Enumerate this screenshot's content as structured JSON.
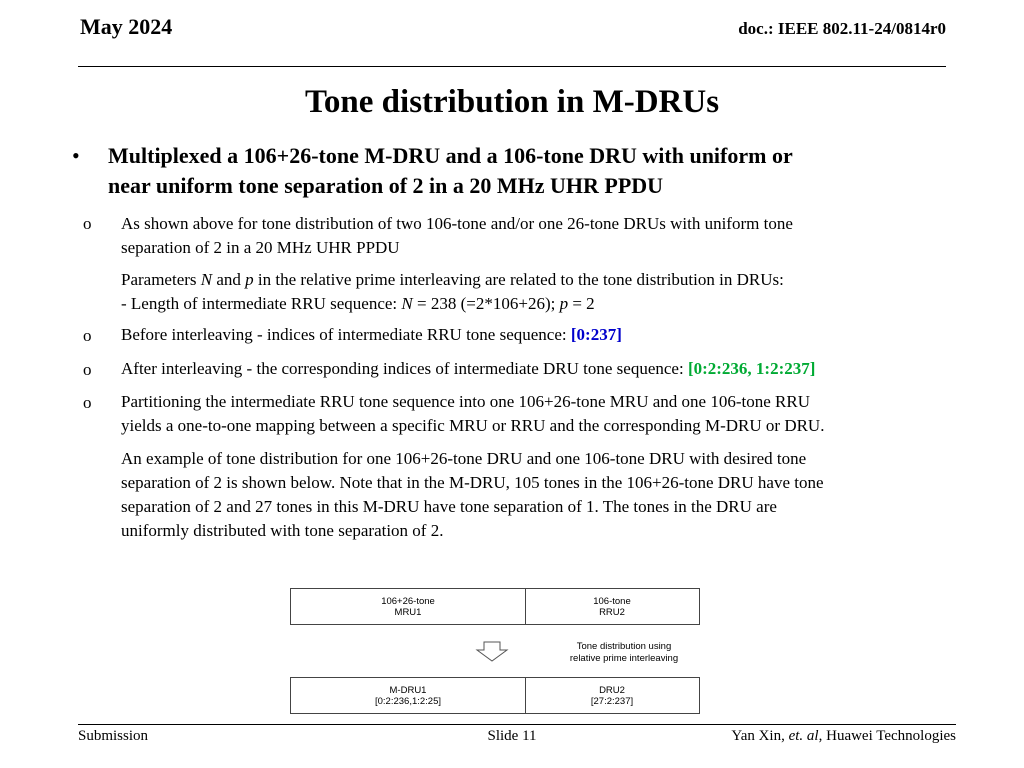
{
  "header": {
    "date": "May 2024",
    "doc": "doc.: IEEE 802.11-24/0814r0"
  },
  "title": "Tone distribution in M-DRUs",
  "main_bullet": {
    "marker": "•",
    "line1": "Multiplexed a 106+26-tone M-DRU and a 106-tone DRU with uniform or",
    "line2": "near uniform tone separation of 2 in a 20 MHz UHR PPDU"
  },
  "sub_bullets": {
    "marker": "o",
    "item1": {
      "line1": "As shown above for tone distribution of two 106-tone and/or one 26-tone DRUs with uniform tone",
      "line2": "separation of 2 in a 20 MHz UHR PPDU"
    },
    "params": {
      "l1_a": "Parameters ",
      "l1_N": "N",
      "l1_b": " and ",
      "l1_p": "p",
      "l1_c": " in the relative prime interleaving are related to the tone distribution in DRUs:",
      "l2_a": "-  Length of intermediate RRU sequence: ",
      "l2_N": "N",
      "l2_b": " = 238 (=2*106+26);  ",
      "l2_p": "p",
      "l2_c": " = 2"
    },
    "item2": {
      "text": "Before interleaving - indices of intermediate RRU tone sequence: ",
      "hl": "[0:237]"
    },
    "item3": {
      "text": "After interleaving - the corresponding indices of intermediate DRU tone sequence: ",
      "hl": "[0:2:236, 1:2:237]"
    },
    "item4": {
      "line1": "Partitioning the intermediate RRU tone sequence into one 106+26-tone MRU and one 106-tone RRU",
      "line2": "yields a one-to-one mapping between a specific MRU or RRU and the corresponding M-DRU or DRU."
    },
    "example": {
      "line1": "An example of tone distribution for one 106+26-tone DRU and one 106-tone DRU with desired tone",
      "line2": "separation of 2 is shown below. Note that in the M-DRU, 105 tones in the 106+26-tone DRU have tone",
      "line3": "separation of 2 and 27 tones in this M-DRU have tone separation of 1. The tones in the DRU are",
      "line4": "uniformly distributed with tone separation of 2."
    }
  },
  "diagram": {
    "top_left": {
      "line1": "106+26-tone",
      "line2": "MRU1"
    },
    "top_right": {
      "line1": "106-tone",
      "line2": "RRU2"
    },
    "arrow_label": {
      "line1": "Tone distribution using",
      "line2": "relative prime interleaving"
    },
    "bottom_left": {
      "line1": "M-DRU1",
      "line2": "[0:2:236,1:2:25]"
    },
    "bottom_right": {
      "line1": "DRU2",
      "line2": "[27:2:237]"
    },
    "arrow_icon": "down-arrow-icon"
  },
  "footer": {
    "left": "Submission",
    "center": "Slide 11",
    "right_name": "Yan Xin, ",
    "right_etal": "et. al",
    "right_org": ", Huawei Technologies"
  }
}
